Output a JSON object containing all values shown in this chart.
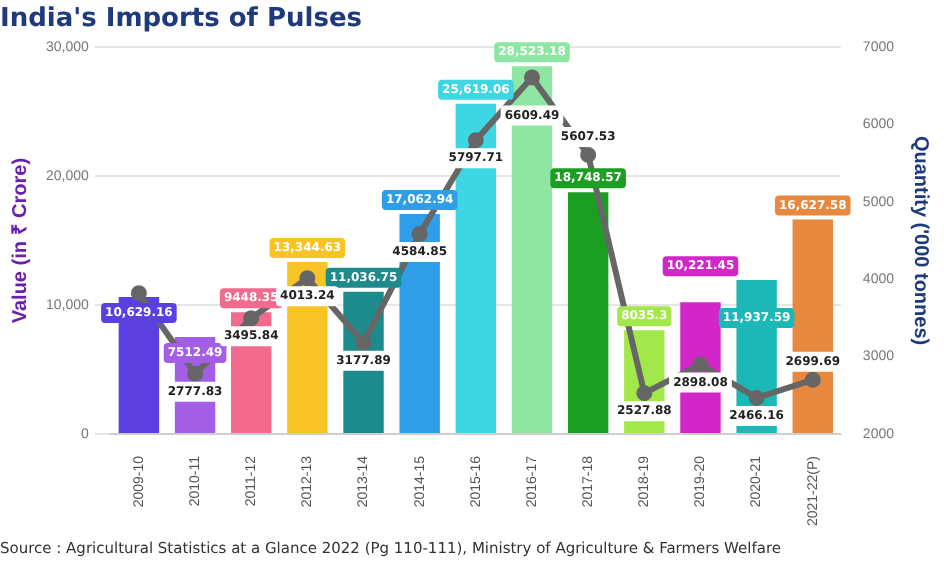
{
  "chart_data": {
    "type": "bar",
    "title": "India's Imports of Pulses",
    "ylabel": "Value (in ₹ Crore)",
    "y2label": "Quantity ('000 tonnes)",
    "annotations": [
      "Source : Agricultural Statistics at a Glance 2022 (Pg 110-111), Ministry of Agriculture & Farmers Welfare"
    ],
    "categories": [
      "2009-10",
      "2010-11",
      "2011-12",
      "2012-13",
      "2013-14",
      "2014-15",
      "2015-16",
      "2016-17",
      "2017-18",
      "2018-19",
      "2019-20",
      "2020-21",
      "2021-22(P)"
    ],
    "series": [
      {
        "colors": [
          "#5b3fe0",
          "#a25fe6",
          "#f26a8d",
          "#f7c325",
          "#1d8a8c",
          "#2f9de8",
          "#3dd6e3",
          "#8fe6a2",
          "#1c9e22",
          "#a3e84a",
          "#d326c9",
          "#1cb8b8",
          "#e8873e"
        ],
        "values": [
          10629.16,
          7512.49,
          9448.35,
          13344.63,
          11036.75,
          17062.94,
          25619.06,
          28523.18,
          18748.57,
          8035.3,
          10221.45,
          11937.59,
          16627.58
        ],
        "value_labels": [
          "10,629.16",
          "7512.49",
          "9448.35",
          "13,344.63",
          "11,036.75",
          "17,062.94",
          "25,619.06",
          "28,523.18",
          "18,748.57",
          "8035.3",
          "10,221.45",
          "11,937.59",
          "16,627.58"
        ]
      },
      {
        "type": "line",
        "axis": "y2",
        "color": "#666666",
        "marker": "circle",
        "values": [
          3820,
          2777.83,
          3495.84,
          4013.24,
          3177.89,
          4584.85,
          5797.71,
          6609.49,
          5607.53,
          2527.88,
          2898.08,
          2466.16,
          2699.69
        ],
        "value_labels": [
          null,
          "2777.83",
          "3495.84",
          "4013.24",
          "3177.89",
          "4584.85",
          "5797.71",
          "6609.49",
          "5607.53",
          "2527.88",
          "2898.08",
          "2466.16",
          "2699.69"
        ]
      }
    ],
    "ylim": [
      0,
      30000
    ],
    "yticks": [
      {
        "value": 0,
        "label": "0"
      },
      {
        "value": 10000,
        "label": "10,000"
      },
      {
        "value": 20000,
        "label": "20,000"
      },
      {
        "value": 30000,
        "label": "30,000"
      }
    ],
    "y2lim": [
      2000,
      7000
    ],
    "y2ticks": [
      2000,
      3000,
      4000,
      5000,
      6000,
      7000
    ],
    "grid": "y",
    "legend": false
  }
}
